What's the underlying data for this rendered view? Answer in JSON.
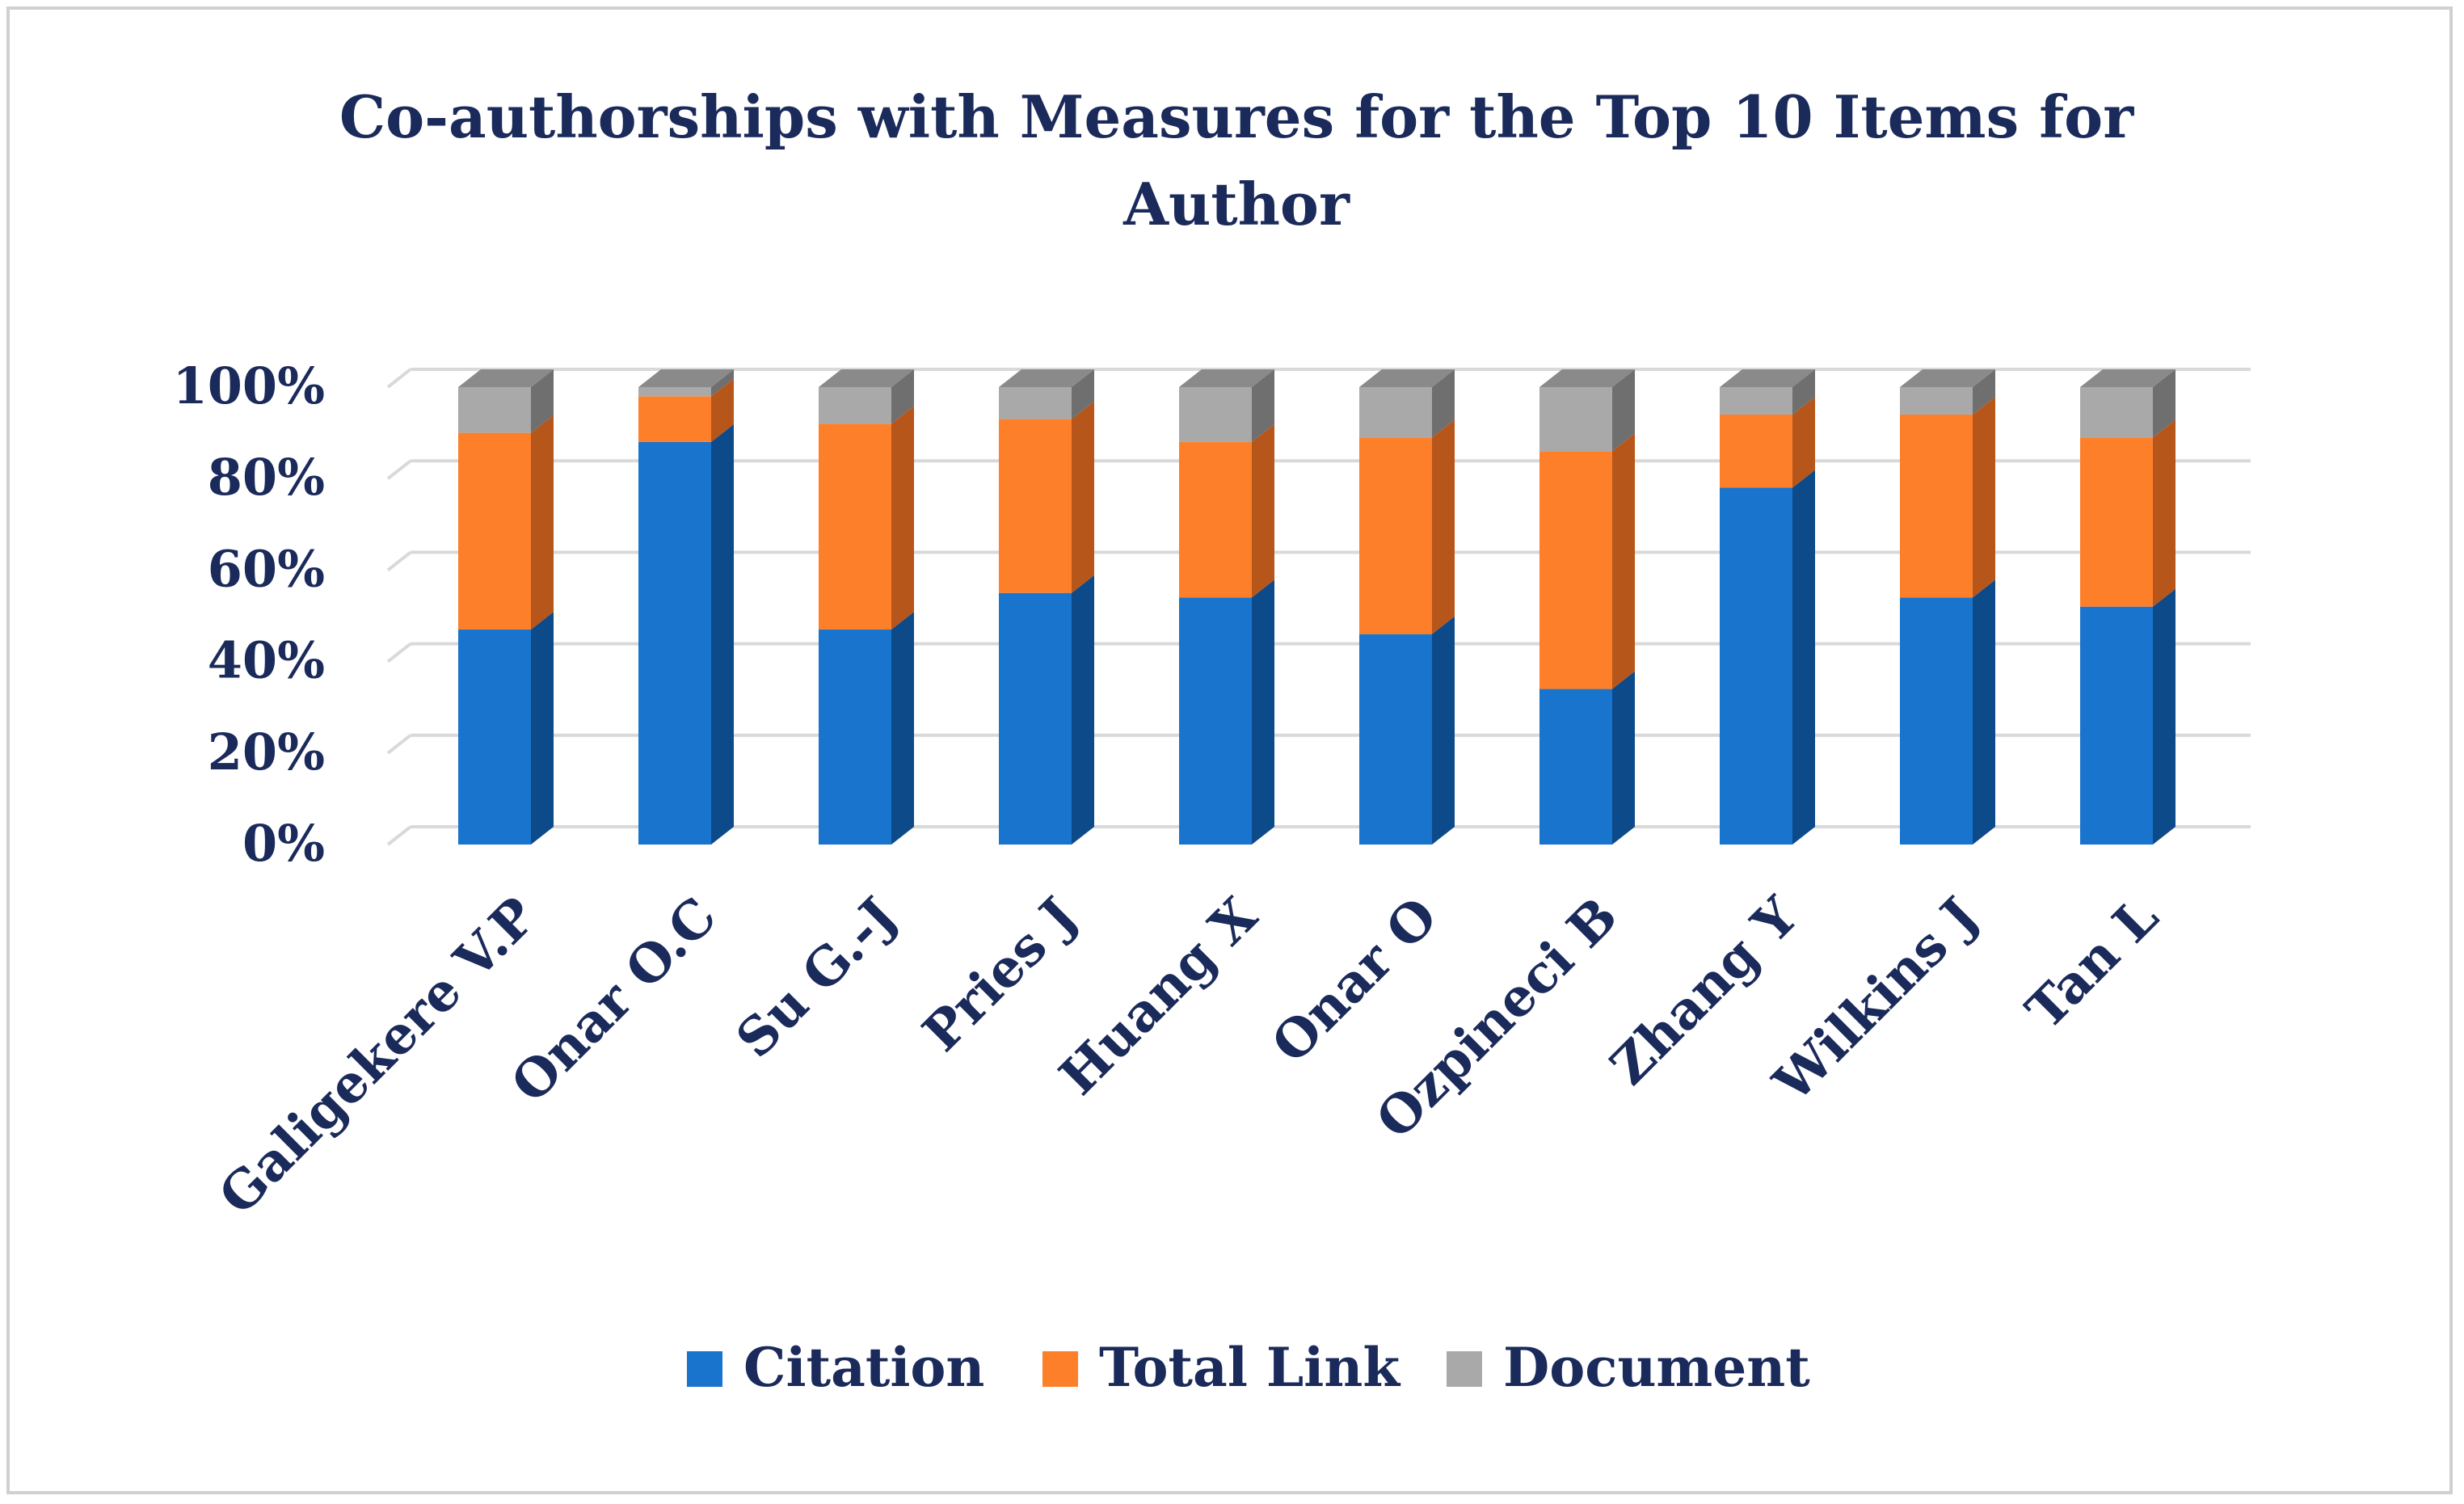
{
  "chart_data": {
    "type": "bar",
    "stacked": true,
    "percent_stacked": true,
    "three_d": true,
    "title": "Co-authorships with Measures for the Top 10 Items for Author",
    "title_lines": [
      "Co-authorships with Measures for the Top 10 Items for",
      "Author"
    ],
    "xlabel": "",
    "ylabel": "",
    "ylim": [
      0,
      100
    ],
    "yticks": [
      "0%",
      "20%",
      "40%",
      "60%",
      "80%",
      "100%"
    ],
    "grid": true,
    "legend_position": "bottom",
    "categories": [
      "Galigekere V.P",
      "Onar O.C",
      "Su G.-J",
      "Pries J",
      "Huang X",
      "Onar O",
      "Ozpineci B",
      "Zhang Y",
      "Wilkins J",
      "Tan L"
    ],
    "series": [
      {
        "name": "Citation",
        "color": "#1874cd",
        "side_color": "#0d4a8a",
        "top_color": "#1262b0",
        "values": [
          47,
          88,
          47,
          55,
          54,
          46,
          34,
          78,
          54,
          52
        ]
      },
      {
        "name": "Total Link",
        "color": "#fd7f2a",
        "side_color": "#b7561a",
        "top_color": "#d96a1f",
        "values": [
          43,
          10,
          45,
          38,
          34,
          43,
          52,
          16,
          40,
          37
        ]
      },
      {
        "name": "Document",
        "color": "#a9a9a9",
        "side_color": "#6f6f6f",
        "top_color": "#8a8a8a",
        "values": [
          10,
          2,
          8,
          7,
          12,
          11,
          14,
          6,
          6,
          11
        ]
      }
    ]
  }
}
